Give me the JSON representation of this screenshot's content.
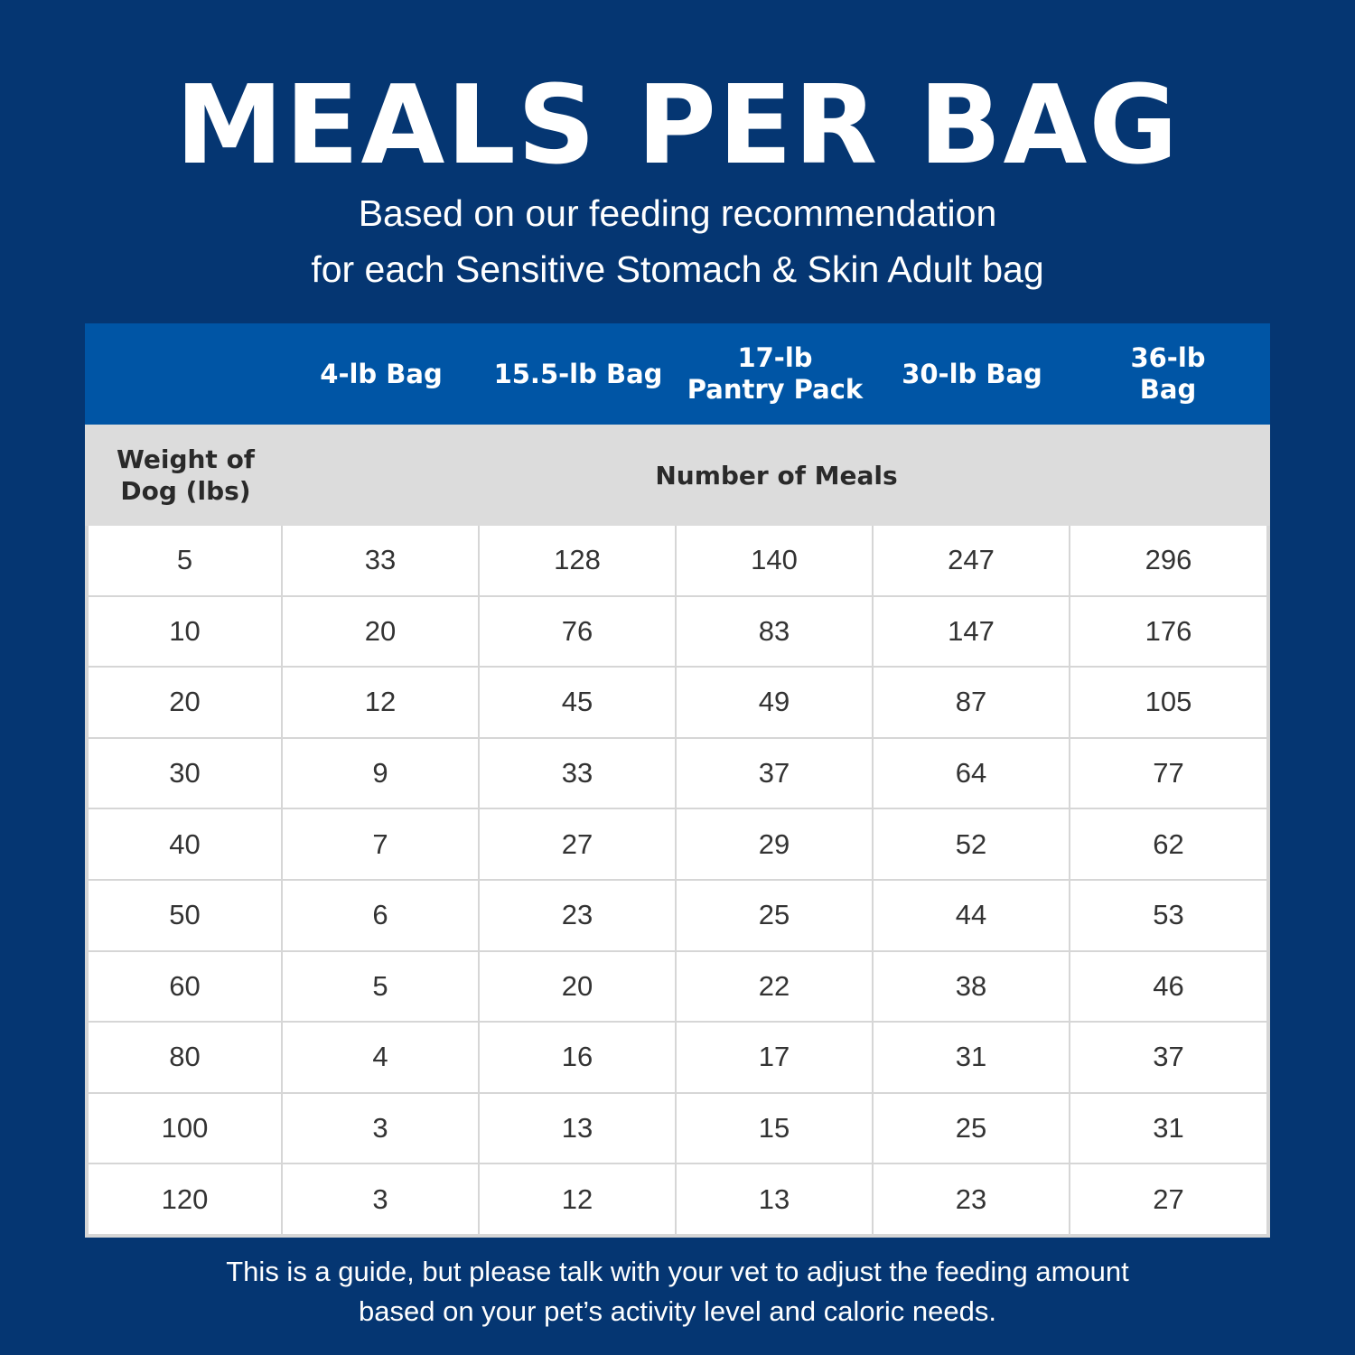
{
  "title": "MEALS PER BAG",
  "subtitle": [
    "Based on our feeding recommendation",
    "for each Sensitive Stomach & Skin Adult bag"
  ],
  "table": {
    "columns": [
      "4-lb Bag",
      "15.5-lb Bag",
      "17-lb Pantry Pack",
      "30-lb Bag",
      "36-lb Bag"
    ],
    "row_header": "Weight of Dog (lbs)",
    "group_header": "Number of Meals",
    "rows": [
      [
        "5",
        "33",
        "128",
        "140",
        "247",
        "296"
      ],
      [
        "10",
        "20",
        "76",
        "83",
        "147",
        "176"
      ],
      [
        "20",
        "12",
        "45",
        "49",
        "87",
        "105"
      ],
      [
        "30",
        "9",
        "33",
        "37",
        "64",
        "77"
      ],
      [
        "40",
        "7",
        "27",
        "29",
        "52",
        "62"
      ],
      [
        "50",
        "6",
        "23",
        "25",
        "44",
        "53"
      ],
      [
        "60",
        "5",
        "20",
        "22",
        "38",
        "46"
      ],
      [
        "80",
        "4",
        "16",
        "17",
        "31",
        "37"
      ],
      [
        "100",
        "3",
        "13",
        "15",
        "25",
        "31"
      ],
      [
        "120",
        "3",
        "12",
        "13",
        "23",
        "27"
      ]
    ]
  },
  "footer": [
    "This is a guide, but please talk with your vet to adjust the feeding amount",
    "based on your pet’s activity level and caloric needs."
  ],
  "colors": {
    "background": "#053672",
    "header": "#0055a5",
    "subheader": "#dcdcdc"
  }
}
